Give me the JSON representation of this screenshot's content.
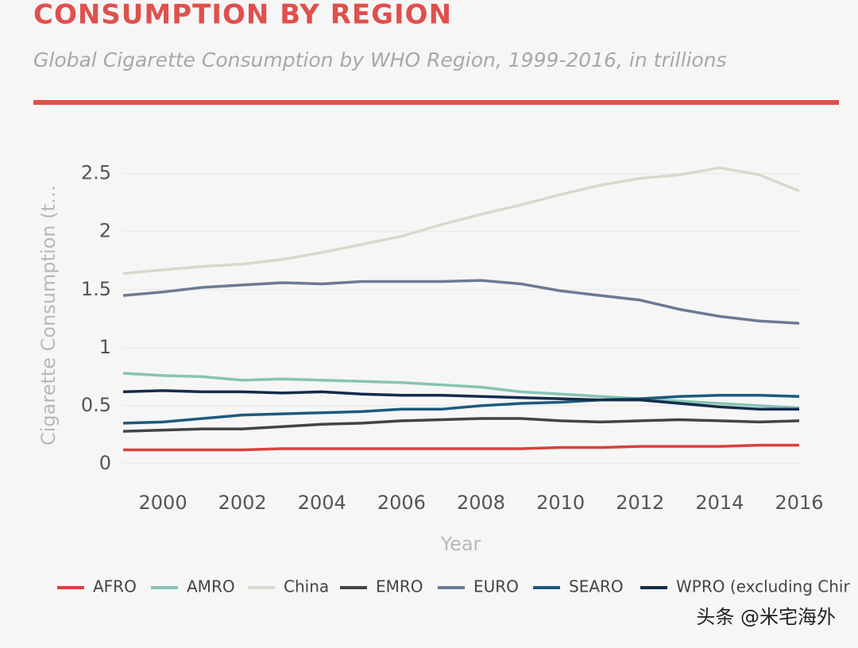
{
  "chart_data": {
    "type": "line",
    "title": "CONSUMPTION BY REGION",
    "subtitle": "Global Cigarette Consumption by WHO Region, 1999-2016, in trillions",
    "y_label": "Cigarette Consumption (t…",
    "x_label": "Year",
    "watermark": "头条 @米宅海外",
    "x": [
      1999,
      2000,
      2001,
      2002,
      2003,
      2004,
      2005,
      2006,
      2007,
      2008,
      2009,
      2010,
      2011,
      2012,
      2013,
      2014,
      2015,
      2016
    ],
    "xlim": [
      1999,
      2016
    ],
    "xticks": [
      2000,
      2002,
      2004,
      2006,
      2008,
      2010,
      2012,
      2014,
      2016
    ],
    "ylim": [
      0,
      2.6
    ],
    "yticks": [
      0,
      0.5,
      1,
      1.5,
      2,
      2.5
    ],
    "grid": true,
    "legend": "bottom",
    "series": [
      {
        "name": "AFRO",
        "color": "#d9413e",
        "values": [
          0.12,
          0.12,
          0.12,
          0.12,
          0.13,
          0.13,
          0.13,
          0.13,
          0.13,
          0.13,
          0.13,
          0.14,
          0.14,
          0.15,
          0.15,
          0.15,
          0.16,
          0.16
        ]
      },
      {
        "name": "AMRO",
        "color": "#86c4b5",
        "values": [
          0.78,
          0.76,
          0.75,
          0.72,
          0.73,
          0.72,
          0.71,
          0.7,
          0.68,
          0.66,
          0.62,
          0.6,
          0.58,
          0.56,
          0.54,
          0.52,
          0.5,
          0.48
        ]
      },
      {
        "name": "China",
        "color": "#d8d9cc",
        "values": [
          1.64,
          1.67,
          1.7,
          1.72,
          1.76,
          1.82,
          1.89,
          1.96,
          2.06,
          2.15,
          2.23,
          2.32,
          2.4,
          2.46,
          2.49,
          2.55,
          2.49,
          2.35
        ]
      },
      {
        "name": "EMRO",
        "color": "#404547",
        "values": [
          0.28,
          0.29,
          0.3,
          0.3,
          0.32,
          0.34,
          0.35,
          0.37,
          0.38,
          0.39,
          0.39,
          0.37,
          0.36,
          0.37,
          0.38,
          0.37,
          0.36,
          0.37
        ]
      },
      {
        "name": "EURO",
        "color": "#6b7b95",
        "values": [
          1.45,
          1.48,
          1.52,
          1.54,
          1.56,
          1.55,
          1.57,
          1.57,
          1.57,
          1.58,
          1.55,
          1.49,
          1.45,
          1.41,
          1.33,
          1.27,
          1.23,
          1.21
        ]
      },
      {
        "name": "SEARO",
        "color": "#1d5a7e",
        "values": [
          0.35,
          0.36,
          0.39,
          0.42,
          0.43,
          0.44,
          0.45,
          0.47,
          0.47,
          0.5,
          0.52,
          0.53,
          0.55,
          0.56,
          0.58,
          0.59,
          0.59,
          0.58
        ]
      },
      {
        "name": "WPRO (excluding Chir",
        "color": "#152b4a",
        "values": [
          0.62,
          0.63,
          0.62,
          0.62,
          0.61,
          0.62,
          0.6,
          0.59,
          0.59,
          0.58,
          0.57,
          0.56,
          0.55,
          0.55,
          0.52,
          0.49,
          0.47,
          0.47
        ]
      }
    ]
  }
}
